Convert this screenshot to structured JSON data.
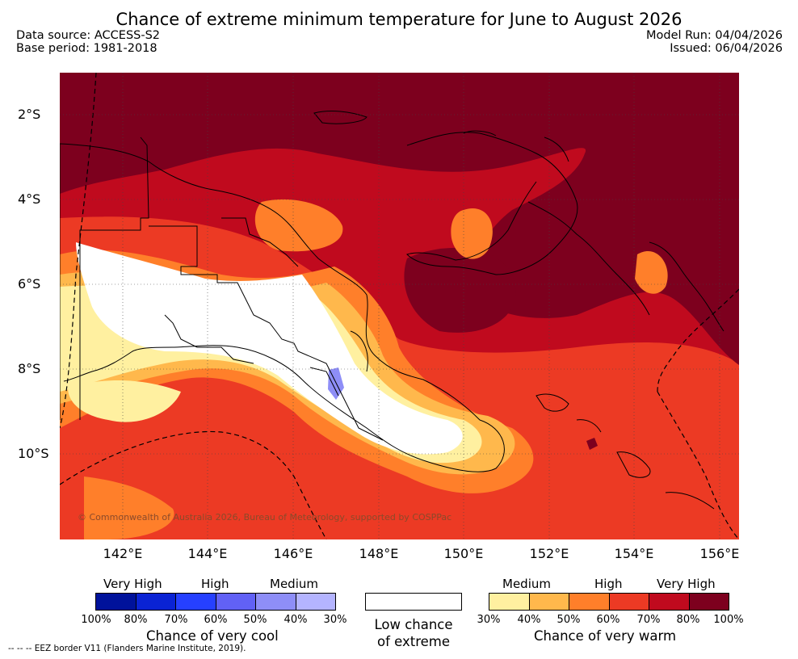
{
  "header": {
    "title": "Chance of extreme minimum temperature for June to August 2026",
    "data_source": "Data source: ACCESS-S2",
    "base_period": "Base period: 1981-2018",
    "model_run": "Model Run: 04/04/2026",
    "issued": "Issued: 06/04/2026"
  },
  "map": {
    "lat_labels": [
      "2°S",
      "4°S",
      "6°S",
      "8°S",
      "10°S"
    ],
    "lon_labels": [
      "142°E",
      "144°E",
      "146°E",
      "148°E",
      "150°E",
      "152°E",
      "154°E",
      "156°E"
    ],
    "copyright": "© Commonwealth of Australia 2026, Bureau of Meteorology, supported by COSPPac"
  },
  "legend": {
    "cool": {
      "categories": [
        "Very High",
        "High",
        "Medium"
      ],
      "ticks": [
        "100%",
        "80%",
        "70%",
        "60%",
        "50%",
        "40%",
        "30%"
      ],
      "colors": [
        "#00129b",
        "#0a23d4",
        "#2640ff",
        "#6161f6",
        "#8e8ef7",
        "#b4b4ff"
      ],
      "caption": "Chance of very cool"
    },
    "low": {
      "caption_line1": "Low chance",
      "caption_line2": "of extreme"
    },
    "warm": {
      "categories": [
        "Medium",
        "High",
        "Very High"
      ],
      "ticks": [
        "30%",
        "40%",
        "50%",
        "60%",
        "70%",
        "80%",
        "100%"
      ],
      "colors": [
        "#fff0a0",
        "#ffb84c",
        "#ff7f2a",
        "#ec3a24",
        "#c00a1e",
        "#7d001e"
      ],
      "caption": "Chance of very warm"
    },
    "eez_note": "--  --  -- EEZ border V11 (Flanders Marine Institute, 2019)."
  },
  "palette": {
    "very_high_warm": "#7d001e",
    "high_warm": "#c00a1e",
    "sixty_warm": "#ec3a24",
    "fifty_warm": "#ff7f2a",
    "forty_warm": "#ffb84c",
    "thirty_warm": "#fff0a0",
    "low_chance": "#ffffff",
    "cool_blue": "#8e8ef7"
  }
}
